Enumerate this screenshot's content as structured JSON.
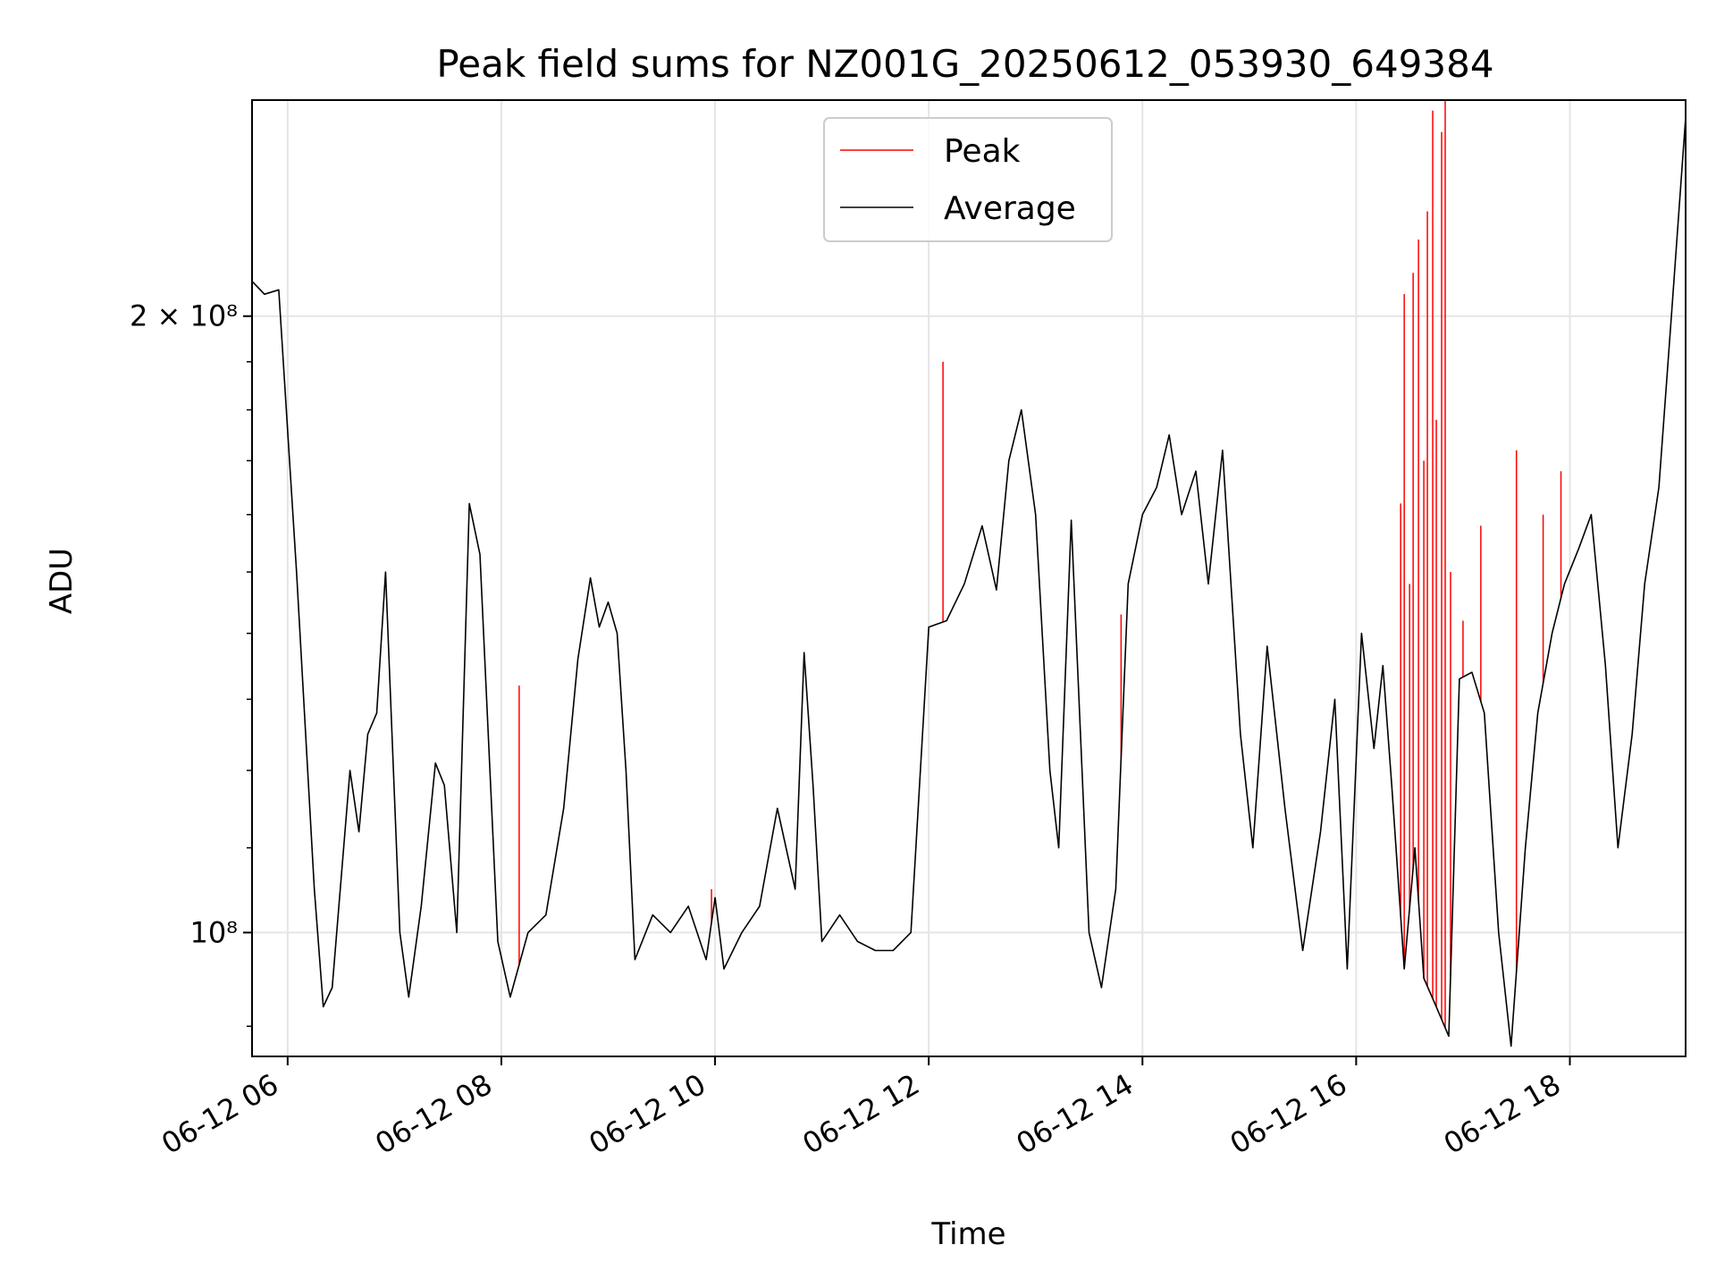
{
  "chart_data": {
    "type": "line",
    "title": "Peak field sums for NZ001G_20250612_053930_649384",
    "xlabel": "Time",
    "ylabel": "ADU",
    "y_scale": "log",
    "ylim": [
      87000000,
      255000000
    ],
    "xlim": [
      "2025-06-12 05:40",
      "2025-06-12 19:05"
    ],
    "grid": true,
    "legend_position": "upper center",
    "x_ticks": [
      "06-12 06",
      "06-12 08",
      "06-12 10",
      "06-12 12",
      "06-12 14",
      "06-12 16",
      "06-12 18"
    ],
    "y_ticks": [
      {
        "value": 200000000,
        "label": "2 × 10⁸"
      },
      {
        "value": 100000000,
        "label": "10⁸"
      }
    ],
    "colors": {
      "peak": "#ff0000",
      "average": "#000000"
    },
    "series": [
      {
        "name": "Average",
        "points": [
          [
            "2025-06-12 05:40",
            208000000
          ],
          [
            "2025-06-12 05:47",
            205000000
          ],
          [
            "2025-06-12 05:55",
            206000000
          ],
          [
            "2025-06-12 06:05",
            150000000
          ],
          [
            "2025-06-12 06:15",
            105000000
          ],
          [
            "2025-06-12 06:20",
            92000000
          ],
          [
            "2025-06-12 06:25",
            94000000
          ],
          [
            "2025-06-12 06:35",
            120000000
          ],
          [
            "2025-06-12 06:40",
            112000000
          ],
          [
            "2025-06-12 06:45",
            125000000
          ],
          [
            "2025-06-12 06:50",
            128000000
          ],
          [
            "2025-06-12 06:55",
            150000000
          ],
          [
            "2025-06-12 07:03",
            100000000
          ],
          [
            "2025-06-12 07:08",
            93000000
          ],
          [
            "2025-06-12 07:15",
            103000000
          ],
          [
            "2025-06-12 07:23",
            121000000
          ],
          [
            "2025-06-12 07:28",
            118000000
          ],
          [
            "2025-06-12 07:35",
            100000000
          ],
          [
            "2025-06-12 07:42",
            162000000
          ],
          [
            "2025-06-12 07:48",
            153000000
          ],
          [
            "2025-06-12 07:58",
            99000000
          ],
          [
            "2025-06-12 08:05",
            93000000
          ],
          [
            "2025-06-12 08:15",
            100000000
          ],
          [
            "2025-06-12 08:25",
            102000000
          ],
          [
            "2025-06-12 08:35",
            115000000
          ],
          [
            "2025-06-12 08:43",
            136000000
          ],
          [
            "2025-06-12 08:50",
            149000000
          ],
          [
            "2025-06-12 08:55",
            141000000
          ],
          [
            "2025-06-12 09:00",
            145000000
          ],
          [
            "2025-06-12 09:05",
            140000000
          ],
          [
            "2025-06-12 09:10",
            120000000
          ],
          [
            "2025-06-12 09:15",
            97000000
          ],
          [
            "2025-06-12 09:25",
            102000000
          ],
          [
            "2025-06-12 09:35",
            100000000
          ],
          [
            "2025-06-12 09:45",
            103000000
          ],
          [
            "2025-06-12 09:55",
            97000000
          ],
          [
            "2025-06-12 10:00",
            104000000
          ],
          [
            "2025-06-12 10:05",
            96000000
          ],
          [
            "2025-06-12 10:15",
            100000000
          ],
          [
            "2025-06-12 10:25",
            103000000
          ],
          [
            "2025-06-12 10:35",
            115000000
          ],
          [
            "2025-06-12 10:45",
            105000000
          ],
          [
            "2025-06-12 10:50",
            137000000
          ],
          [
            "2025-06-12 10:55",
            118000000
          ],
          [
            "2025-06-12 11:00",
            99000000
          ],
          [
            "2025-06-12 11:10",
            102000000
          ],
          [
            "2025-06-12 11:20",
            99000000
          ],
          [
            "2025-06-12 11:30",
            98000000
          ],
          [
            "2025-06-12 11:40",
            98000000
          ],
          [
            "2025-06-12 11:50",
            100000000
          ],
          [
            "2025-06-12 12:00",
            141000000
          ],
          [
            "2025-06-12 12:10",
            142000000
          ],
          [
            "2025-06-12 12:20",
            148000000
          ],
          [
            "2025-06-12 12:30",
            158000000
          ],
          [
            "2025-06-12 12:38",
            147000000
          ],
          [
            "2025-06-12 12:45",
            170000000
          ],
          [
            "2025-06-12 12:52",
            180000000
          ],
          [
            "2025-06-12 13:00",
            160000000
          ],
          [
            "2025-06-12 13:08",
            120000000
          ],
          [
            "2025-06-12 13:13",
            110000000
          ],
          [
            "2025-06-12 13:20",
            159000000
          ],
          [
            "2025-06-12 13:30",
            100000000
          ],
          [
            "2025-06-12 13:37",
            94000000
          ],
          [
            "2025-06-12 13:45",
            105000000
          ],
          [
            "2025-06-12 13:52",
            148000000
          ],
          [
            "2025-06-12 14:00",
            160000000
          ],
          [
            "2025-06-12 14:08",
            165000000
          ],
          [
            "2025-06-12 14:15",
            175000000
          ],
          [
            "2025-06-12 14:22",
            160000000
          ],
          [
            "2025-06-12 14:30",
            168000000
          ],
          [
            "2025-06-12 14:37",
            148000000
          ],
          [
            "2025-06-12 14:45",
            172000000
          ],
          [
            "2025-06-12 14:55",
            125000000
          ],
          [
            "2025-06-12 15:02",
            110000000
          ],
          [
            "2025-06-12 15:10",
            138000000
          ],
          [
            "2025-06-12 15:20",
            115000000
          ],
          [
            "2025-06-12 15:30",
            98000000
          ],
          [
            "2025-06-12 15:40",
            112000000
          ],
          [
            "2025-06-12 15:48",
            130000000
          ],
          [
            "2025-06-12 15:55",
            96000000
          ],
          [
            "2025-06-12 16:03",
            140000000
          ],
          [
            "2025-06-12 16:10",
            123000000
          ],
          [
            "2025-06-12 16:15",
            135000000
          ],
          [
            "2025-06-12 16:20",
            118000000
          ],
          [
            "2025-06-12 16:27",
            96000000
          ],
          [
            "2025-06-12 16:33",
            110000000
          ],
          [
            "2025-06-12 16:38",
            95000000
          ],
          [
            "2025-06-12 16:45",
            92000000
          ],
          [
            "2025-06-12 16:52",
            89000000
          ],
          [
            "2025-06-12 16:58",
            133000000
          ],
          [
            "2025-06-12 17:05",
            134000000
          ],
          [
            "2025-06-12 17:12",
            128000000
          ],
          [
            "2025-06-12 17:20",
            100000000
          ],
          [
            "2025-06-12 17:27",
            88000000
          ],
          [
            "2025-06-12 17:35",
            110000000
          ],
          [
            "2025-06-12 17:42",
            128000000
          ],
          [
            "2025-06-12 17:50",
            140000000
          ],
          [
            "2025-06-12 17:57",
            148000000
          ],
          [
            "2025-06-12 18:05",
            154000000
          ],
          [
            "2025-06-12 18:12",
            160000000
          ],
          [
            "2025-06-12 18:20",
            135000000
          ],
          [
            "2025-06-12 18:27",
            110000000
          ],
          [
            "2025-06-12 18:35",
            125000000
          ],
          [
            "2025-06-12 18:42",
            148000000
          ],
          [
            "2025-06-12 18:50",
            165000000
          ],
          [
            "2025-06-12 18:57",
            200000000
          ],
          [
            "2025-06-12 19:05",
            250000000
          ]
        ]
      },
      {
        "name": "Peak",
        "points": [
          [
            "2025-06-12 08:10",
            132000000
          ],
          [
            "2025-06-12 09:58",
            105000000
          ],
          [
            "2025-06-12 12:08",
            190000000
          ],
          [
            "2025-06-12 13:48",
            143000000
          ],
          [
            "2025-06-12 16:25",
            162000000
          ],
          [
            "2025-06-12 16:27",
            205000000
          ],
          [
            "2025-06-12 16:30",
            148000000
          ],
          [
            "2025-06-12 16:32",
            210000000
          ],
          [
            "2025-06-12 16:35",
            218000000
          ],
          [
            "2025-06-12 16:38",
            170000000
          ],
          [
            "2025-06-12 16:40",
            225000000
          ],
          [
            "2025-06-12 16:43",
            252000000
          ],
          [
            "2025-06-12 16:45",
            178000000
          ],
          [
            "2025-06-12 16:48",
            246000000
          ],
          [
            "2025-06-12 16:50",
            255000000
          ],
          [
            "2025-06-12 16:53",
            150000000
          ],
          [
            "2025-06-12 17:00",
            142000000
          ],
          [
            "2025-06-12 17:10",
            158000000
          ],
          [
            "2025-06-12 17:30",
            172000000
          ],
          [
            "2025-06-12 17:45",
            160000000
          ],
          [
            "2025-06-12 17:55",
            168000000
          ]
        ]
      }
    ]
  }
}
